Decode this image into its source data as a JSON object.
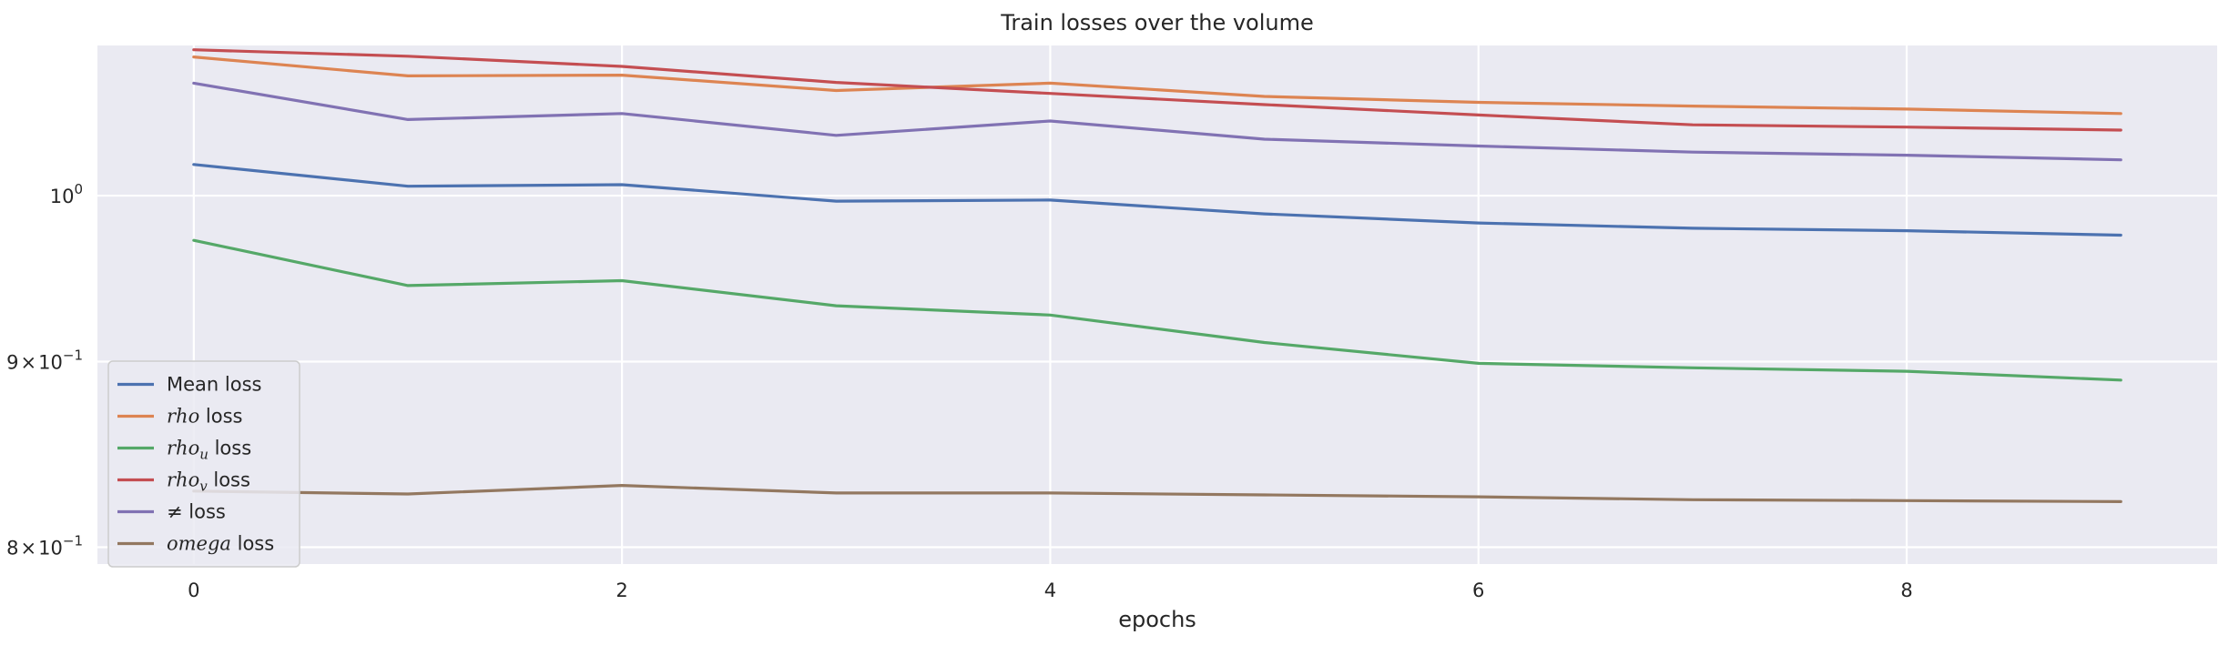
{
  "chart_data": {
    "type": "line",
    "title": "Train losses over the volume",
    "xlabel": "epochs",
    "ylabel": "",
    "y_scale": "log",
    "xlim": [
      -0.45,
      9.45
    ],
    "ylim": [
      0.7915,
      1.1
    ],
    "grid": true,
    "legend_position": "lower-left",
    "x": [
      0,
      1,
      2,
      3,
      4,
      5,
      6,
      7,
      8,
      9
    ],
    "x_ticks": [
      {
        "value": 0,
        "label": "0"
      },
      {
        "value": 2,
        "label": "2"
      },
      {
        "value": 4,
        "label": "4"
      },
      {
        "value": 6,
        "label": "6"
      },
      {
        "value": 8,
        "label": "8"
      }
    ],
    "y_ticks": [
      {
        "value": 1.0,
        "mantissa": "",
        "base": "10",
        "exponent": "0"
      },
      {
        "value": 0.9,
        "mantissa": "9",
        "times": "×",
        "base": "10",
        "exponent": "−1"
      },
      {
        "value": 0.8,
        "mantissa": "8",
        "times": "×",
        "base": "10",
        "exponent": "−1"
      }
    ],
    "series": [
      {
        "name": "Mean loss",
        "legend": {
          "math": "",
          "sub": "",
          "text": "Mean loss"
        },
        "color": "#4c72b0",
        "values": [
          1.02,
          1.006,
          1.007,
          0.9965,
          0.9972,
          0.9885,
          0.9828,
          0.9795,
          0.978,
          0.9752
        ]
      },
      {
        "name": "rho loss",
        "legend": {
          "math": "rho",
          "sub": "",
          "text": " loss"
        },
        "color": "#dd8452",
        "values": [
          1.092,
          1.079,
          1.0795,
          1.069,
          1.074,
          1.065,
          1.061,
          1.0585,
          1.0565,
          1.0535
        ]
      },
      {
        "name": "rho_u loss",
        "legend": {
          "math": "rho",
          "sub": "u",
          "text": " loss"
        },
        "color": "#55a868",
        "values": [
          0.972,
          0.9445,
          0.9475,
          0.9325,
          0.927,
          0.911,
          0.899,
          0.8965,
          0.8945,
          0.8895
        ]
      },
      {
        "name": "rho_v loss",
        "legend": {
          "math": "rho",
          "sub": "v",
          "text": " loss"
        },
        "color": "#c44e52",
        "values": [
          1.097,
          1.0925,
          1.0855,
          1.0745,
          1.067,
          1.0595,
          1.0525,
          1.046,
          1.0445,
          1.0425
        ]
      },
      {
        "name": "≠ loss",
        "legend": {
          "math": "",
          "sub": "",
          "text": "≠  loss"
        },
        "color": "#8172b3",
        "values": [
          1.074,
          1.0495,
          1.0535,
          1.039,
          1.0485,
          1.0365,
          1.032,
          1.028,
          1.026,
          1.023
        ]
      },
      {
        "name": "omega loss",
        "legend": {
          "math": "omega",
          "sub": "",
          "text": " loss"
        },
        "color": "#937860",
        "values": [
          0.829,
          0.8275,
          0.832,
          0.828,
          0.828,
          0.827,
          0.826,
          0.8245,
          0.824,
          0.8235
        ]
      }
    ]
  }
}
